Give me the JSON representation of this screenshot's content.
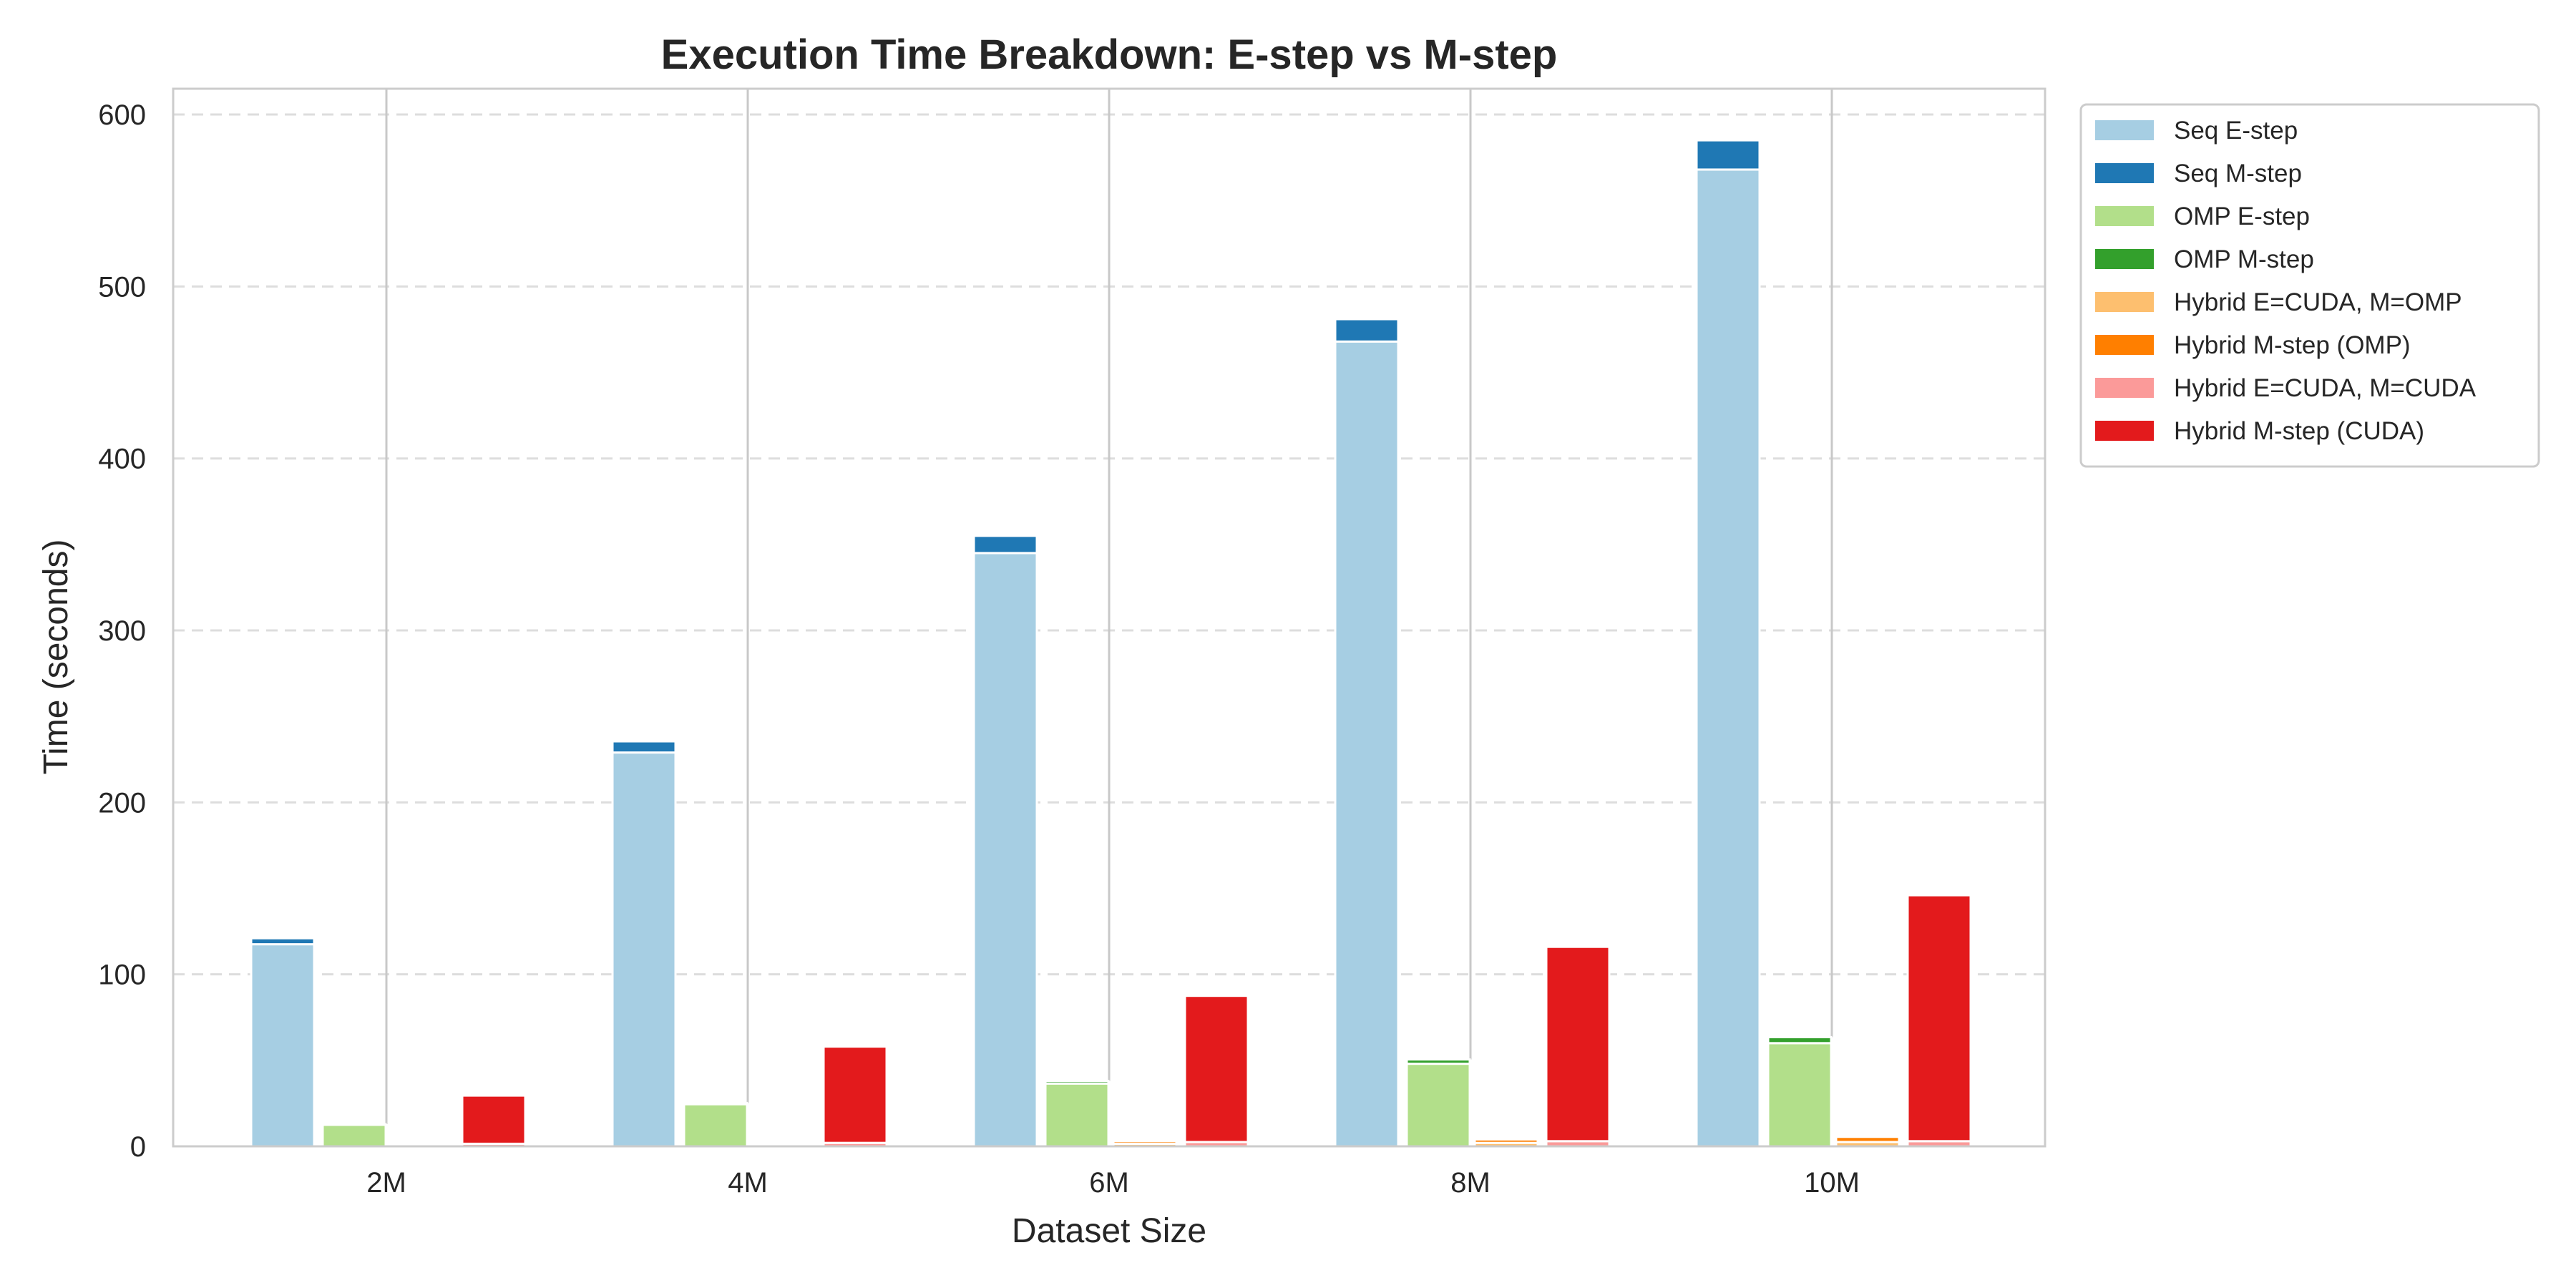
{
  "chart_data": {
    "type": "bar",
    "title": "Execution Time Breakdown: E-step vs M-step",
    "xlabel": "Dataset Size",
    "ylabel": "Time (seconds)",
    "categories": [
      "2M",
      "4M",
      "6M",
      "8M",
      "10M"
    ],
    "ylim": [
      0,
      615
    ],
    "yticks": [
      0,
      100,
      200,
      300,
      400,
      500,
      600
    ],
    "grid": "horizontal dashed",
    "legend_position": "outside-top-right",
    "groups": [
      {
        "name": "Seq",
        "segments": [
          {
            "label": "Seq E-step",
            "color": "#a6cee3",
            "values": [
              117.5,
              229,
              345,
              468,
              568
            ]
          },
          {
            "label": "Seq M-step",
            "color": "#1f78b4",
            "values": [
              3.5,
              6.5,
              10,
              13,
              17
            ]
          }
        ]
      },
      {
        "name": "OMP",
        "segments": [
          {
            "label": "OMP E-step",
            "color": "#b2df8a",
            "values": [
              12.5,
              24.5,
              36.5,
              48,
              60
            ]
          },
          {
            "label": "OMP M-step",
            "color": "#33a02c",
            "values": [
              0.4,
              0.7,
              1.5,
              2.5,
              3.5
            ]
          }
        ]
      },
      {
        "name": "Hybrid E=CUDA, M=OMP",
        "segments": [
          {
            "label": "Hybrid E=CUDA, M=OMP",
            "color": "#fdbf6f",
            "values": [
              0.5,
              1,
              1.5,
              2,
              2.5
            ]
          },
          {
            "label": "Hybrid M-step (OMP)",
            "color": "#ff7f00",
            "values": [
              0.5,
              1,
              1.5,
              2,
              3
            ]
          }
        ]
      },
      {
        "name": "Hybrid E=CUDA, M=CUDA",
        "segments": [
          {
            "label": "Hybrid E=CUDA, M=CUDA",
            "color": "#fb9a99",
            "values": [
              1.5,
              2,
              2.5,
              3,
              3
            ]
          },
          {
            "label": "Hybrid M-step (CUDA)",
            "color": "#e31a1c",
            "values": [
              28,
              56,
              85,
              113,
              143
            ]
          }
        ]
      }
    ],
    "legend": [
      {
        "label": "Seq E-step",
        "color": "#a6cee3"
      },
      {
        "label": "Seq M-step",
        "color": "#1f78b4"
      },
      {
        "label": "OMP E-step",
        "color": "#b2df8a"
      },
      {
        "label": "OMP M-step",
        "color": "#33a02c"
      },
      {
        "label": "Hybrid E=CUDA, M=OMP",
        "color": "#fdbf6f"
      },
      {
        "label": "Hybrid M-step (OMP)",
        "color": "#ff7f00"
      },
      {
        "label": "Hybrid E=CUDA, M=CUDA",
        "color": "#fb9a99"
      },
      {
        "label": "Hybrid M-step (CUDA)",
        "color": "#e31a1c"
      }
    ]
  }
}
